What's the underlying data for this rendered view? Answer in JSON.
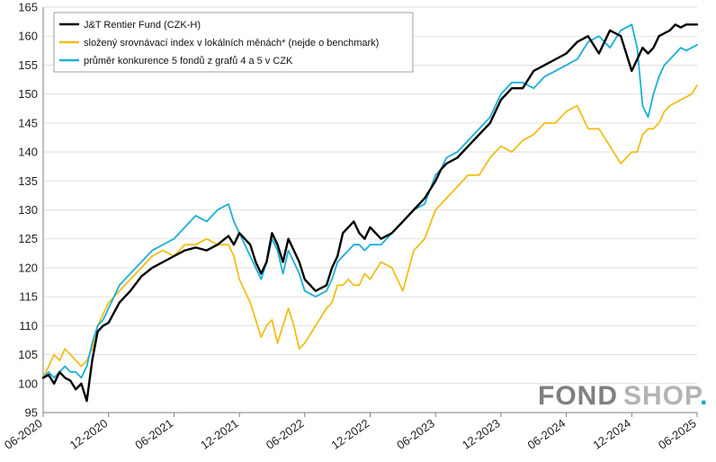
{
  "chart_data": {
    "type": "line",
    "ylim": [
      95,
      165
    ],
    "y_ticks": [
      95,
      100,
      105,
      110,
      115,
      120,
      125,
      130,
      135,
      140,
      145,
      150,
      155,
      160,
      165
    ],
    "x_ticks": [
      "06-2020",
      "12-2020",
      "06-2021",
      "12-2021",
      "06-2022",
      "12-2022",
      "06-2023",
      "12-2023",
      "06-2024",
      "12-2024",
      "06-2025"
    ],
    "x_range_months": [
      0,
      60
    ],
    "grid": "horizontal",
    "legend_position": "top-left",
    "series": [
      {
        "name": "J&T Rentier Fund (CZK-H)",
        "color": "#000000",
        "x": [
          0,
          0.5,
          1,
          1.5,
          2,
          2.5,
          3,
          3.5,
          4,
          4.5,
          5,
          5.5,
          6,
          7,
          8,
          9,
          10,
          11,
          12,
          13,
          14,
          15,
          16,
          17,
          17.5,
          18,
          19,
          19.5,
          20,
          20.5,
          21,
          21.5,
          22,
          22.5,
          23,
          23.5,
          24,
          25,
          26,
          26.5,
          27,
          27.5,
          28,
          28.5,
          29,
          29.5,
          30,
          31,
          32,
          33,
          34,
          35,
          36,
          36.5,
          37,
          38,
          39,
          40,
          41,
          42,
          43,
          44,
          45,
          46,
          47,
          48,
          49,
          50,
          51,
          52,
          53,
          54,
          54.5,
          55,
          55.5,
          56,
          56.5,
          57,
          57.5,
          58,
          58.5,
          59,
          59.5,
          60
        ],
        "values": [
          101,
          101.5,
          100,
          102,
          101,
          100.5,
          99,
          100,
          97,
          104,
          109,
          110,
          110.5,
          114,
          116,
          118.5,
          120,
          121,
          122,
          123,
          123.5,
          123,
          124,
          125.5,
          124,
          126,
          124,
          121,
          119,
          121,
          126,
          124,
          121,
          125,
          123,
          121,
          118,
          116,
          117,
          120,
          122,
          126,
          127,
          128,
          126,
          125,
          127,
          125,
          126,
          128,
          130,
          132,
          135,
          137,
          138,
          139,
          141,
          143,
          145,
          149,
          151,
          151,
          154,
          155,
          156,
          157,
          159,
          160,
          157,
          161,
          160,
          154,
          156,
          158,
          157,
          158,
          160,
          160.5,
          161,
          162,
          161.5,
          162,
          162,
          162
        ]
      },
      {
        "name": "složený srovnávací index v lokálních měnách* (nejde o benchmark)",
        "color": "#F2BE18",
        "x": [
          0,
          0.5,
          1,
          1.5,
          2,
          2.5,
          3,
          3.5,
          4,
          4.5,
          5,
          5.5,
          6,
          7,
          8,
          9,
          10,
          11,
          12,
          13,
          14,
          15,
          16,
          17,
          17.5,
          18,
          19,
          19.5,
          20,
          20.5,
          21,
          21.5,
          22,
          22.5,
          23,
          23.5,
          24,
          25,
          26,
          26.5,
          27,
          27.5,
          28,
          28.5,
          29,
          29.5,
          30,
          31,
          32,
          33,
          34,
          35,
          36,
          36.5,
          37,
          38,
          39,
          40,
          41,
          42,
          43,
          44,
          45,
          46,
          47,
          48,
          49,
          50,
          51,
          52,
          53,
          54,
          54.5,
          55,
          55.5,
          56,
          56.5,
          57,
          57.5,
          58,
          58.5,
          59,
          59.5,
          60
        ],
        "values": [
          101,
          103,
          105,
          104,
          106,
          105,
          104,
          103,
          104,
          106,
          110,
          112,
          114,
          116,
          118,
          120,
          122,
          123,
          122,
          124,
          124,
          125,
          124,
          124,
          122,
          118,
          114,
          111,
          108,
          110,
          111,
          107,
          110,
          113,
          110,
          106,
          107,
          110,
          113,
          114,
          117,
          117,
          118,
          117,
          117,
          119,
          118,
          121,
          120,
          116,
          123,
          125,
          130,
          131,
          132,
          134,
          136,
          136,
          139,
          141,
          140,
          142,
          143,
          145,
          145,
          147,
          148,
          144,
          144,
          141,
          138,
          140,
          140,
          143,
          144,
          144,
          145,
          147,
          148,
          148.5,
          149,
          149.5,
          150,
          151.5
        ]
      },
      {
        "name": "průměr konkurence 5 fondů z grafů 4 a 5 v CZK",
        "color": "#1AAFD9",
        "x": [
          0,
          0.5,
          1,
          1.5,
          2,
          2.5,
          3,
          3.5,
          4,
          4.5,
          5,
          5.5,
          6,
          7,
          8,
          9,
          10,
          11,
          12,
          13,
          14,
          15,
          16,
          17,
          17.5,
          18,
          19,
          19.5,
          20,
          20.5,
          21,
          21.5,
          22,
          22.5,
          23,
          23.5,
          24,
          25,
          26,
          26.5,
          27,
          27.5,
          28,
          28.5,
          29,
          29.5,
          30,
          31,
          32,
          33,
          34,
          35,
          36,
          36.5,
          37,
          38,
          39,
          40,
          41,
          42,
          43,
          44,
          45,
          46,
          47,
          48,
          49,
          50,
          51,
          52,
          53,
          54,
          54.5,
          55,
          55.5,
          56,
          56.5,
          57,
          57.5,
          58,
          58.5,
          59,
          59.5,
          60
        ],
        "values": [
          101,
          102,
          101,
          102,
          103,
          102,
          102,
          101,
          103,
          107,
          110,
          111,
          113,
          117,
          119,
          121,
          123,
          124,
          125,
          127,
          129,
          128,
          130,
          131,
          128,
          126,
          122,
          120,
          118,
          121,
          125,
          123,
          119,
          123,
          121,
          119,
          116,
          115,
          116,
          118,
          121,
          122,
          123,
          124,
          124,
          123,
          124,
          124,
          126,
          128,
          130,
          131,
          136,
          137,
          139,
          140,
          142,
          144,
          146,
          150,
          152,
          152,
          151,
          153,
          154,
          155,
          156,
          159,
          160,
          158,
          161,
          162,
          158,
          148,
          146,
          150,
          153,
          155,
          156,
          157,
          158,
          157.5,
          158,
          158.5
        ]
      }
    ]
  },
  "watermark": {
    "part1": "FOND",
    "part2": "SHOP",
    "part3": ".",
    "color1": "#808080",
    "color2": "#B3B3B3",
    "color3": "#18A9C9"
  }
}
